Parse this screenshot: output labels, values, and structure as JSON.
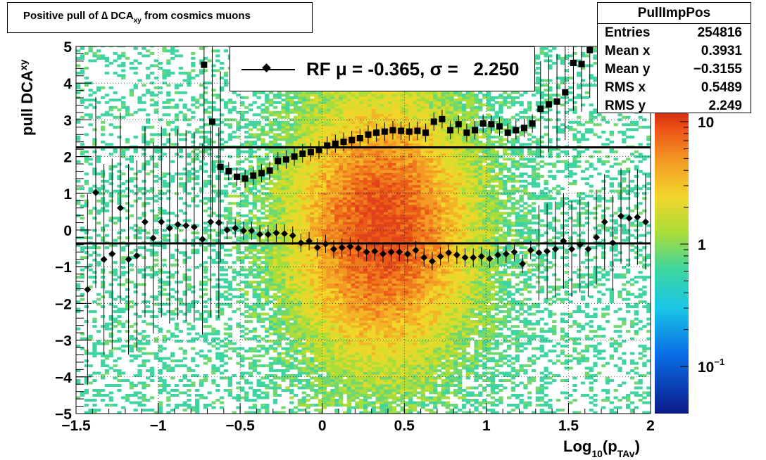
{
  "title": {
    "main": "Positive pull of ∆ DCA",
    "sub": "xy",
    "tail": " from cosmics muons"
  },
  "stats": {
    "name": "PullImpPos",
    "rows": [
      {
        "label": "Entries",
        "value": "254816"
      },
      {
        "label": "Mean x",
        "value": "0.3931"
      },
      {
        "label": "Mean y",
        "value": "−0.3155"
      },
      {
        "label": "RMS x",
        "value": "0.5489"
      },
      {
        "label": "RMS y",
        "value": "2.249"
      }
    ]
  },
  "legend": {
    "text": "RF μ = -0.365, σ =   2.250"
  },
  "chart_data": {
    "type": "heatmap",
    "xlabel": "Log10(pTAv)",
    "ylabel": "pull DCAxy",
    "xlim": [
      -1.5,
      2
    ],
    "ylim": [
      -5,
      5
    ],
    "x_ticks": [
      "−1.5",
      "−1",
      "−0.5",
      "0",
      "0.5",
      "1",
      "1.5",
      "2"
    ],
    "y_ticks": [
      "−5",
      "−4",
      "−3",
      "−2",
      "−1",
      "0",
      "1",
      "2",
      "3",
      "4",
      "5"
    ],
    "z_scale": "log",
    "z_ticks": [
      "10",
      "1",
      "10−1"
    ],
    "horizontal_lines": [
      2.25,
      -0.365
    ],
    "series": [
      {
        "marker": "square",
        "x": [
          -0.72,
          -0.67,
          -0.62,
          -0.57,
          -0.52,
          -0.47,
          -0.42,
          -0.37,
          -0.32,
          -0.27,
          -0.22,
          -0.17,
          -0.12,
          -0.07,
          -0.02,
          0.03,
          0.08,
          0.13,
          0.18,
          0.23,
          0.28,
          0.33,
          0.38,
          0.43,
          0.48,
          0.53,
          0.58,
          0.63,
          0.68,
          0.73,
          0.78,
          0.83,
          0.88,
          0.93,
          0.98,
          1.03,
          1.08,
          1.13,
          1.18,
          1.23,
          1.28,
          1.33,
          1.38,
          1.43,
          1.48,
          1.53,
          1.58,
          1.63
        ],
        "y": [
          4.5,
          2.95,
          1.72,
          1.6,
          1.45,
          1.4,
          1.48,
          1.55,
          1.62,
          1.88,
          1.92,
          2.0,
          2.08,
          2.12,
          2.18,
          2.3,
          2.35,
          2.4,
          2.45,
          2.5,
          2.6,
          2.65,
          2.68,
          2.72,
          2.7,
          2.68,
          2.7,
          2.65,
          2.95,
          3.02,
          2.72,
          2.88,
          2.65,
          2.72,
          2.9,
          2.88,
          2.82,
          2.65,
          2.72,
          2.78,
          2.9,
          3.3,
          3.42,
          3.5,
          3.75,
          4.55,
          4.52,
          4.9
        ]
      },
      {
        "marker": "diamond",
        "x": [
          -1.43,
          -1.38,
          -1.33,
          -1.28,
          -1.23,
          -1.18,
          -1.13,
          -1.08,
          -1.03,
          -0.98,
          -0.93,
          -0.88,
          -0.83,
          -0.78,
          -0.73,
          -0.68,
          -0.63,
          -0.58,
          -0.53,
          -0.48,
          -0.43,
          -0.38,
          -0.33,
          -0.28,
          -0.23,
          -0.18,
          -0.13,
          -0.08,
          -0.03,
          0.02,
          0.07,
          0.12,
          0.17,
          0.22,
          0.27,
          0.32,
          0.37,
          0.42,
          0.47,
          0.52,
          0.57,
          0.62,
          0.67,
          0.72,
          0.77,
          0.82,
          0.87,
          0.92,
          0.97,
          1.02,
          1.07,
          1.12,
          1.17,
          1.22,
          1.27,
          1.32,
          1.37,
          1.42,
          1.47,
          1.52,
          1.57,
          1.62,
          1.67,
          1.72,
          1.77,
          1.82,
          1.87,
          1.92,
          1.97
        ],
        "y": [
          -1.62,
          1.02,
          -0.8,
          -0.65,
          0.6,
          -0.8,
          -0.7,
          0.22,
          -0.22,
          0.22,
          0.05,
          0.15,
          0.12,
          0.08,
          -0.25,
          0.22,
          0.2,
          0.0,
          0.05,
          -0.02,
          -0.02,
          -0.12,
          -0.12,
          -0.08,
          -0.1,
          -0.15,
          -0.35,
          -0.3,
          -0.48,
          -0.38,
          -0.52,
          -0.48,
          -0.45,
          -0.5,
          -0.6,
          -0.58,
          -0.65,
          -0.6,
          -0.6,
          -0.65,
          -0.55,
          -0.75,
          -0.85,
          -0.72,
          -0.62,
          -0.68,
          -0.75,
          -0.75,
          -0.72,
          -0.78,
          -0.68,
          -0.65,
          -0.6,
          -0.92,
          -0.55,
          -0.62,
          -0.58,
          -0.52,
          -0.3,
          -0.52,
          -0.4,
          -0.52,
          -0.2,
          0.22,
          -0.35,
          0.38,
          0.32,
          0.35,
          0.22
        ]
      }
    ]
  }
}
